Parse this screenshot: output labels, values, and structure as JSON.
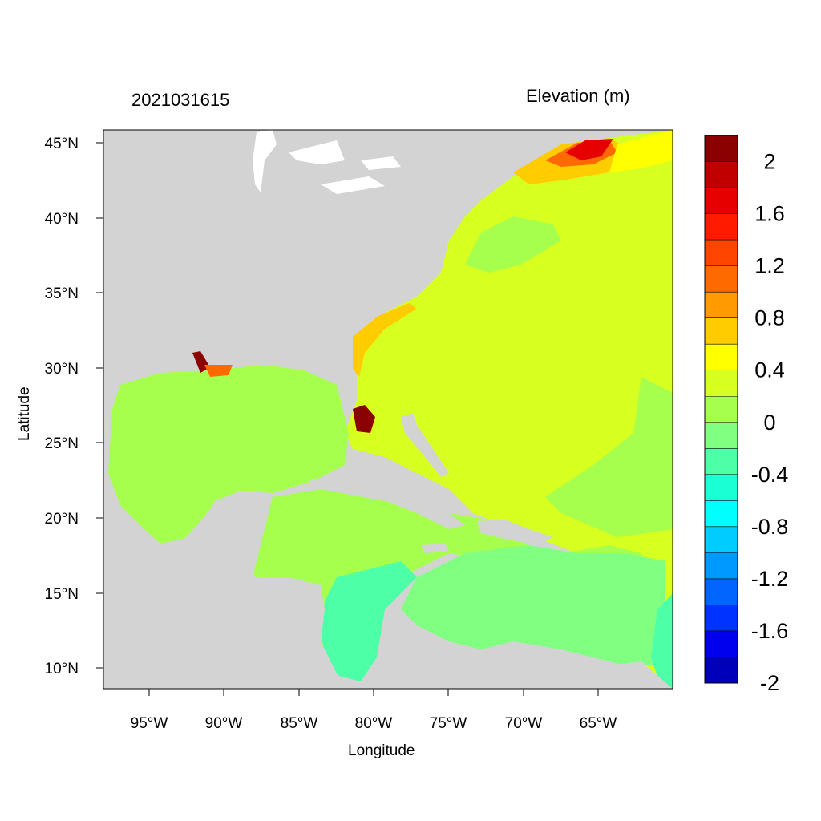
{
  "title_left": "2021031615",
  "title_right": "Elevation (m)",
  "xlabel": "Longitude",
  "ylabel": "Latitude",
  "x_ticks": [
    "95°W",
    "90°W",
    "85°W",
    "80°W",
    "75°W",
    "70°W",
    "65°W"
  ],
  "y_ticks": [
    "45°N",
    "40°N",
    "35°N",
    "30°N",
    "25°N",
    "20°N",
    "15°N",
    "10°N"
  ],
  "colorbar": {
    "labels": [
      "2",
      "1.6",
      "1.2",
      "0.8",
      "0.4",
      "0",
      "-0.4",
      "-0.8",
      "-1.2",
      "-1.6",
      "-2"
    ],
    "colors": [
      "#8b0000",
      "#c00000",
      "#e60000",
      "#ff1a00",
      "#ff4500",
      "#ff6a00",
      "#ff9a00",
      "#ffcc00",
      "#ffff00",
      "#d7ff1f",
      "#a6ff4d",
      "#80ff80",
      "#4dffa6",
      "#1affd4",
      "#00ffff",
      "#00ccff",
      "#0099ff",
      "#0066ff",
      "#0033ff",
      "#0000ee",
      "#0000bb"
    ]
  },
  "map_colors": {
    "land": "#d3d3d3",
    "ocean_main": "#d7ff1f",
    "gulf": "#a6ff4d",
    "caribbean_low": "#80ff80",
    "high": "#ff1a00",
    "extreme": "#8b0000",
    "mid": "#ffcc00",
    "low": "#4dffa6"
  }
}
